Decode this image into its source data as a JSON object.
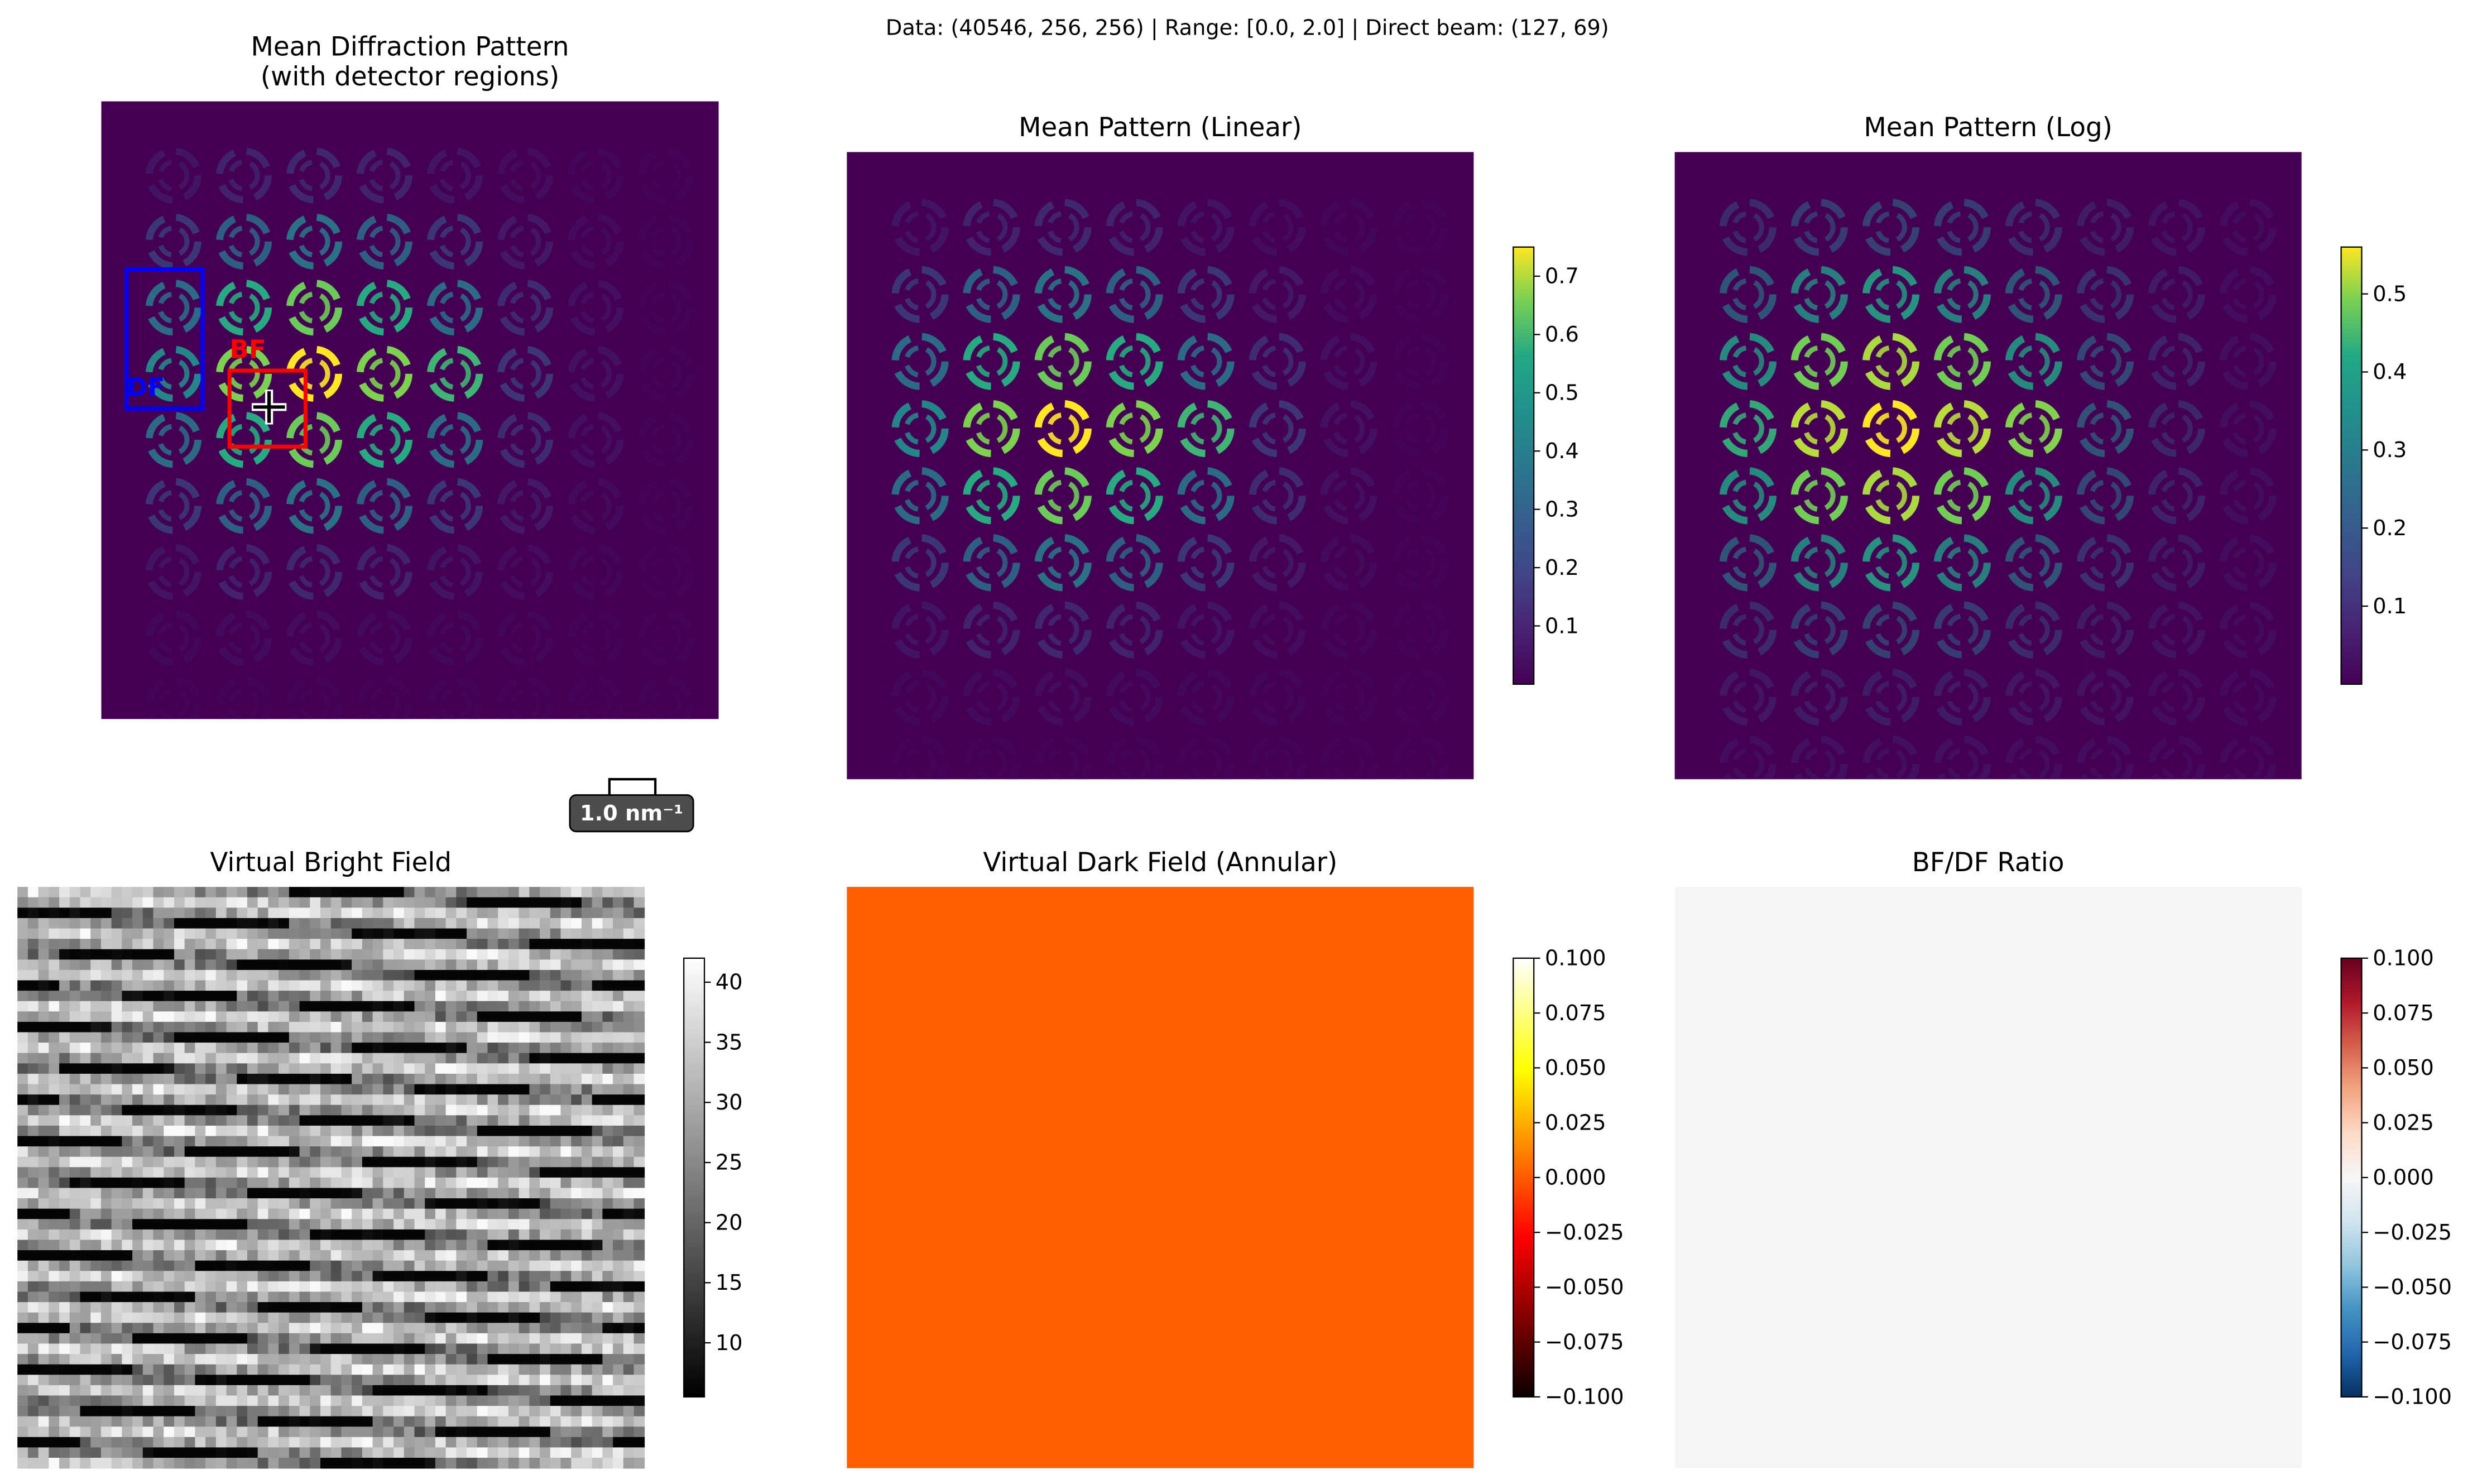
{
  "suptitle": "Data: (40546, 256, 256) | Range: [0.0, 2.0] | Direct beam: (127, 69)",
  "colors": {
    "viridis_bg": "#440154",
    "bf_box": "#ff0000",
    "df_box": "#0000ff",
    "df_uniform": "#ff5d00",
    "ratio_uniform": "#f5f5f5",
    "scalebar_bg": "#4d4d4d"
  },
  "panels": {
    "mean_detectors": {
      "title_line1": "Mean Diffraction Pattern",
      "title_line2": "(with detector regions)",
      "bf_label": "BF",
      "df_label": "DF",
      "center_marker": "plus-icon",
      "scalebar_label": "1.0 nm⁻¹"
    },
    "mean_linear": {
      "title": "Mean Pattern (Linear)"
    },
    "mean_log": {
      "title": "Mean Pattern (Log)"
    },
    "vbf": {
      "title": "Virtual Bright Field"
    },
    "vdf": {
      "title": "Virtual Dark Field (Annular)"
    },
    "ratio": {
      "title": "BF/DF Ratio"
    }
  },
  "chart_data": [
    {
      "type": "heatmap",
      "id": "mean_detectors",
      "title": "Mean Diffraction Pattern\n(with detector regions)",
      "colormap": "viridis",
      "pattern": "grid of ring-shaped diffraction disks, brightest near direct beam",
      "detectors": [
        {
          "name": "BF",
          "color": "#ff0000"
        },
        {
          "name": "DF",
          "color": "#0000ff"
        }
      ],
      "direct_beam": [
        127,
        69
      ],
      "scalebar": "1.0 nm⁻¹"
    },
    {
      "type": "heatmap",
      "id": "mean_linear",
      "title": "Mean Pattern (Linear)",
      "colormap": "viridis",
      "colorbar": {
        "ticks": [
          0.1,
          0.2,
          0.3,
          0.4,
          0.5,
          0.6,
          0.7
        ],
        "range": [
          0.0,
          0.75
        ]
      }
    },
    {
      "type": "heatmap",
      "id": "mean_log",
      "title": "Mean Pattern (Log)",
      "colormap": "viridis",
      "colorbar": {
        "ticks": [
          0.1,
          0.2,
          0.3,
          0.4,
          0.5
        ],
        "range": [
          0.0,
          0.56
        ]
      }
    },
    {
      "type": "heatmap",
      "id": "vbf",
      "title": "Virtual Bright Field",
      "colormap": "gray",
      "pattern": "diagonal horizontal stripes, noisy",
      "colorbar": {
        "ticks": [
          10,
          15,
          20,
          25,
          30,
          35,
          40
        ],
        "range": [
          5.5,
          42
        ]
      }
    },
    {
      "type": "heatmap",
      "id": "vdf",
      "title": "Virtual Dark Field (Annular)",
      "colormap": "hot",
      "uniform_value": 0.0,
      "colorbar": {
        "ticks": [
          -0.1,
          -0.075,
          -0.05,
          -0.025,
          0.0,
          0.025,
          0.05,
          0.075,
          0.1
        ],
        "range": [
          -0.1,
          0.1
        ]
      }
    },
    {
      "type": "heatmap",
      "id": "ratio",
      "title": "BF/DF Ratio",
      "colormap": "RdBu_r",
      "uniform_value": 0.0,
      "colorbar": {
        "ticks": [
          -0.1,
          -0.075,
          -0.05,
          -0.025,
          0.0,
          0.025,
          0.05,
          0.075,
          0.1
        ],
        "range": [
          -0.1,
          0.1
        ]
      }
    }
  ]
}
